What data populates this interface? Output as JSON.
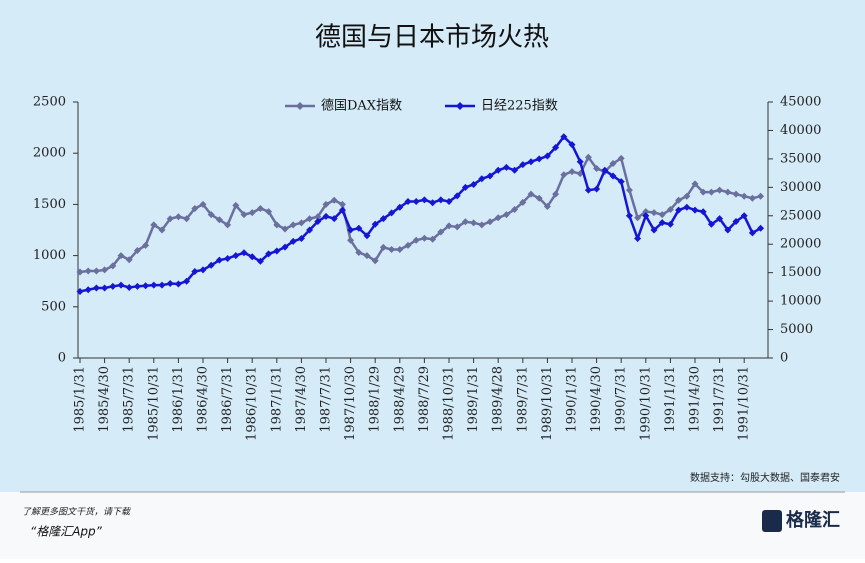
{
  "chart_data": {
    "type": "line",
    "title": "德国与日本市场火热",
    "categories": [
      "1985/1/31",
      null,
      null,
      "1985/4/30",
      null,
      null,
      "1985/7/31",
      null,
      null,
      "1985/10/31",
      null,
      null,
      "1986/1/31",
      null,
      null,
      "1986/4/30",
      null,
      null,
      "1986/7/31",
      null,
      null,
      "1986/10/31",
      null,
      null,
      "1987/1/31",
      null,
      null,
      "1987/4/30",
      null,
      null,
      "1987/7/31",
      null,
      null,
      "1987/10/30",
      null,
      null,
      "1988/1/29",
      null,
      null,
      "1988/4/29",
      null,
      null,
      "1988/7/29",
      null,
      null,
      "1988/10/31",
      null,
      null,
      "1989/1/31",
      null,
      null,
      "1989/4/28",
      null,
      null,
      "1989/7/31",
      null,
      null,
      "1989/10/31",
      null,
      null,
      "1990/1/31",
      null,
      null,
      "1990/4/30",
      null,
      null,
      "1990/7/31",
      null,
      null,
      "1990/10/31",
      null,
      null,
      "1991/1/31",
      null,
      null,
      "1991/4/30",
      null,
      null,
      "1991/7/31",
      null,
      null,
      "1991/10/31",
      null,
      null
    ],
    "series": [
      {
        "name": "德国DAX指数",
        "color": "#6b6f9e",
        "values": [
          840,
          850,
          850,
          860,
          900,
          1000,
          960,
          1050,
          1100,
          1300,
          1250,
          1360,
          1380,
          1360,
          1460,
          1500,
          1400,
          1350,
          1300,
          1490,
          1400,
          1420,
          1460,
          1430,
          1300,
          1260,
          1300,
          1320,
          1360,
          1380,
          1500,
          1540,
          1500,
          1150,
          1030,
          1000,
          950,
          1080,
          1060,
          1060,
          1100,
          1150,
          1170,
          1160,
          1230,
          1290,
          1280,
          1330,
          1320,
          1300,
          1330,
          1370,
          1400,
          1450,
          1520,
          1600,
          1560,
          1480,
          1600,
          1790,
          1820,
          1800,
          1960,
          1850,
          1820,
          1900,
          1950,
          1640,
          1370,
          1430,
          1420,
          1400,
          1450,
          1540,
          1580,
          1700,
          1620,
          1620,
          1640,
          1620,
          1600,
          1580,
          1560,
          1580
        ]
      },
      {
        "name": "日经225指数",
        "color": "#1515d4",
        "axis": "y2",
        "values": [
          11700,
          12000,
          12300,
          12300,
          12600,
          12800,
          12400,
          12600,
          12700,
          12800,
          12800,
          13100,
          13000,
          13500,
          15200,
          15500,
          16300,
          17200,
          17500,
          18000,
          18500,
          17800,
          17000,
          18300,
          18800,
          19500,
          20500,
          21000,
          22500,
          24000,
          24900,
          24500,
          26000,
          22500,
          22800,
          21500,
          23500,
          24500,
          25500,
          26500,
          27500,
          27500,
          27800,
          27300,
          27800,
          27500,
          28500,
          30000,
          30500,
          31500,
          32000,
          33000,
          33500,
          33000,
          34000,
          34500,
          35000,
          35500,
          37000,
          38900,
          37500,
          34500,
          29500,
          29700,
          33000,
          32000,
          31000,
          25000,
          21000,
          25000,
          22500,
          23800,
          23500,
          26000,
          26500,
          26000,
          25700,
          23500,
          24500,
          22500,
          24000,
          25000,
          22000,
          22800
        ]
      }
    ],
    "ylim": [
      0,
      2500
    ],
    "yticks": [
      0,
      500,
      1000,
      1500,
      2000,
      2500
    ],
    "y2lim": [
      0,
      45000
    ],
    "y2ticks": [
      0,
      5000,
      10000,
      15000,
      20000,
      25000,
      30000,
      35000,
      40000,
      45000
    ],
    "legend": "top",
    "source": "数据支持：勾股大数据、国泰君安",
    "footer_line1": "了解更多图文干货，请下载",
    "footer_line2": "“格隆汇App”",
    "logo": "格隆汇"
  }
}
